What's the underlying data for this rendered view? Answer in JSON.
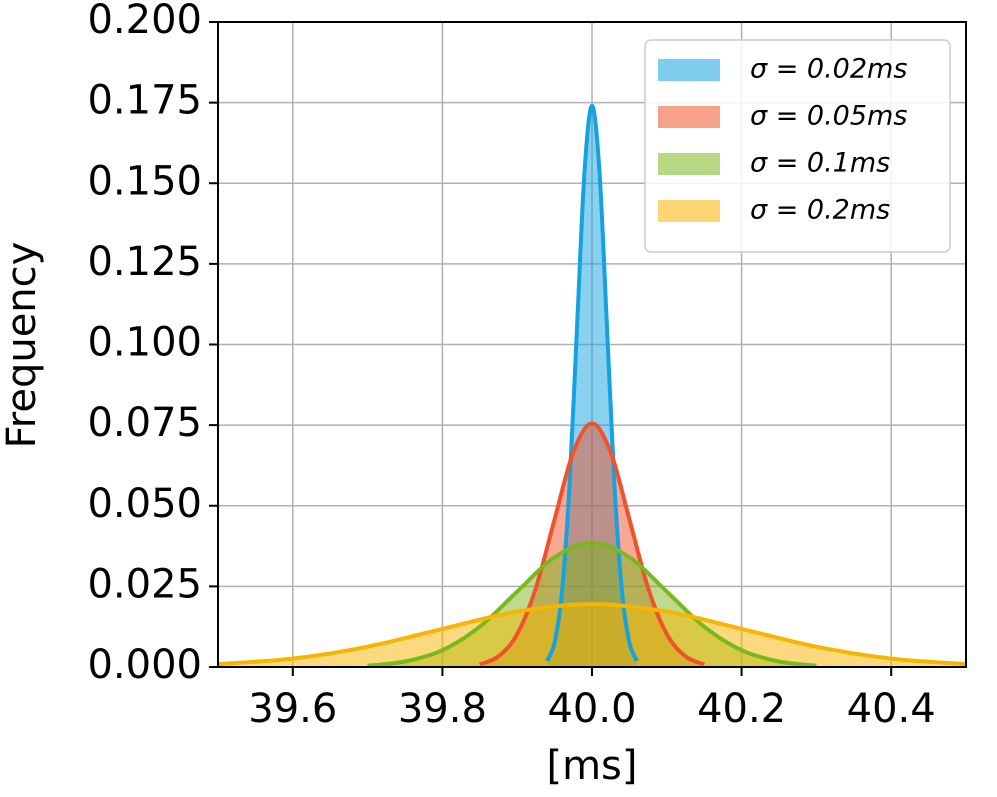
{
  "chart_data": {
    "type": "line",
    "xlabel": "[ms]",
    "ylabel": "Frequency",
    "xlim": [
      39.5,
      40.5
    ],
    "ylim": [
      0,
      0.2
    ],
    "xticks": [
      39.6,
      39.8,
      {
        "value": 40,
        "label": "40.0"
      },
      40.2,
      40.4
    ],
    "yticks": [
      {
        "value": 0,
        "label": "0.000"
      },
      {
        "value": 0.025,
        "label": "0.025"
      },
      {
        "value": 0.05,
        "label": "0.050"
      },
      {
        "value": 0.075,
        "label": "0.075"
      },
      {
        "value": 0.1,
        "label": "0.100"
      },
      {
        "value": 0.125,
        "label": "0.125"
      },
      {
        "value": 0.15,
        "label": "0.150"
      },
      {
        "value": 0.175,
        "label": "0.175"
      },
      {
        "value": 0.2,
        "label": "0.200"
      }
    ],
    "grid": true,
    "legend": "upper right",
    "filled": true,
    "series": [
      {
        "name": "σ = 0.02ms",
        "color": "#14a3e0",
        "x": [
          39.94,
          39.95,
          39.96,
          39.97,
          39.98,
          39.99,
          40.0,
          40.01,
          40.02,
          40.03,
          40.04,
          40.05,
          40.06
        ],
        "values": [
          0.0019,
          0.0076,
          0.0235,
          0.0565,
          0.1055,
          0.1536,
          0.174,
          0.1536,
          0.1055,
          0.0565,
          0.0235,
          0.0076,
          0.0019
        ]
      },
      {
        "name": "σ = 0.05ms",
        "color": "#f0522a",
        "x": [
          39.85,
          39.875,
          39.9,
          39.925,
          39.95,
          39.975,
          40.0,
          40.025,
          40.05,
          40.075,
          40.1,
          40.125,
          40.15
        ],
        "values": [
          0.0008,
          0.0033,
          0.0102,
          0.0245,
          0.0458,
          0.0666,
          0.0755,
          0.0666,
          0.0458,
          0.0245,
          0.0102,
          0.0033,
          0.0008
        ]
      },
      {
        "name": "σ = 0.1ms",
        "color": "#7ab81e",
        "x": [
          39.7,
          39.75,
          39.8,
          39.85,
          39.9,
          39.95,
          40.0,
          40.05,
          40.1,
          40.15,
          40.2,
          40.25,
          40.3
        ],
        "values": [
          0.0004,
          0.0017,
          0.0052,
          0.0125,
          0.0234,
          0.034,
          0.0385,
          0.034,
          0.0234,
          0.0125,
          0.0052,
          0.0017,
          0.0004
        ]
      },
      {
        "name": "σ = 0.2ms",
        "color": "#f7b500",
        "x": [
          39.5,
          39.6,
          39.7,
          39.8,
          39.9,
          40.0,
          40.1,
          40.2,
          40.3,
          40.4,
          40.5
        ],
        "values": [
          0.0009,
          0.0026,
          0.0063,
          0.0118,
          0.0172,
          0.0195,
          0.0172,
          0.0118,
          0.0063,
          0.0026,
          0.0009
        ]
      }
    ]
  }
}
